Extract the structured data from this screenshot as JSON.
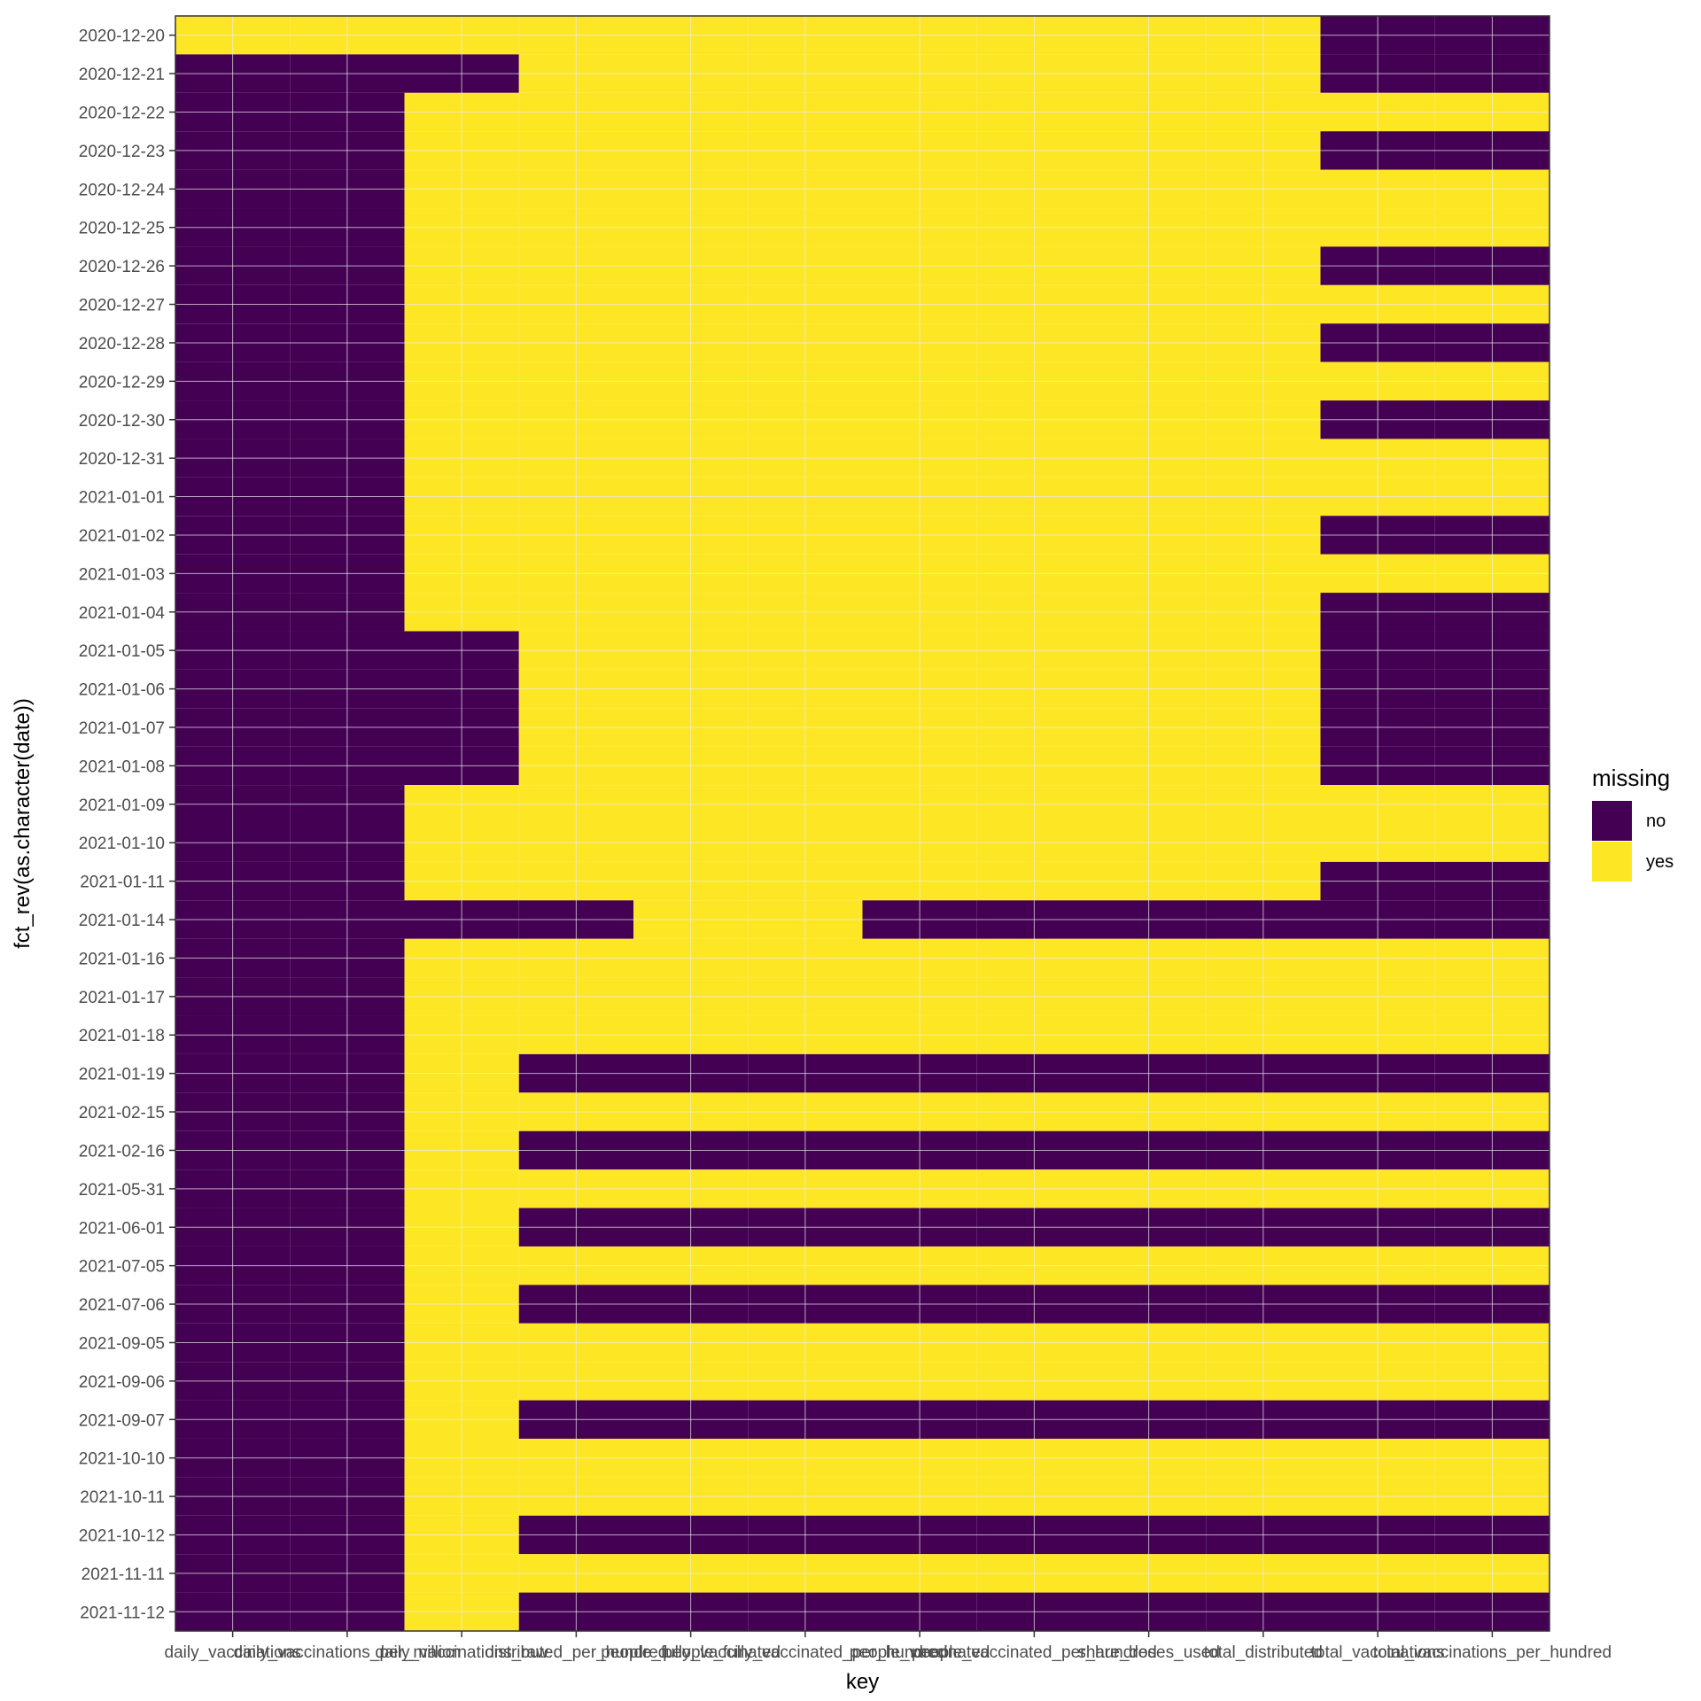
{
  "chart_data": {
    "type": "heatmap",
    "xlabel": "key",
    "ylabel": "fct_rev(as.character(date))",
    "x_categories": [
      "daily_vaccinations",
      "daily_vaccinations_per_million",
      "daily_vaccinations_raw",
      "distributed_per_hundred",
      "people_fully_vaccinated",
      "people_fully_vaccinated_per_hundred",
      "people_vaccinated",
      "people_vaccinated_per_hundred",
      "share_doses_used",
      "total_distributed",
      "total_vaccinations",
      "total_vaccinations_per_hundred"
    ],
    "x_tick_labels": [
      "daily_vaccinations",
      "daily_vaccinations_per_million",
      "daily_vaccinations_raw",
      "distributed_per_hundred",
      "people_fully_vaccinated",
      "people_fully_vaccinated_per_hundred",
      "people_vaccinated",
      "people_vaccinated_per_hundred",
      "share_doses_used",
      "total_distributed",
      "total_vaccinations",
      "total_vaccinations_per_hundred"
    ],
    "y_categories": [
      "2020-12-20",
      "2020-12-21",
      "2020-12-22",
      "2020-12-23",
      "2020-12-24",
      "2020-12-25",
      "2020-12-26",
      "2020-12-27",
      "2020-12-28",
      "2020-12-29",
      "2020-12-30",
      "2020-12-31",
      "2021-01-01",
      "2021-01-02",
      "2021-01-03",
      "2021-01-04",
      "2021-01-05",
      "2021-01-06",
      "2021-01-07",
      "2021-01-08",
      "2021-01-09",
      "2021-01-10",
      "2021-01-11",
      "2021-01-14",
      "2021-01-16",
      "2021-01-17",
      "2021-01-18",
      "2021-01-19",
      "2021-02-15",
      "2021-02-16",
      "2021-05-31",
      "2021-06-01",
      "2021-07-05",
      "2021-07-06",
      "2021-09-05",
      "2021-09-06",
      "2021-09-07",
      "2021-10-10",
      "2021-10-11",
      "2021-10-12",
      "2021-11-11",
      "2021-11-12"
    ],
    "values": [
      [
        1,
        1,
        1,
        1,
        1,
        1,
        1,
        1,
        1,
        1,
        0,
        0
      ],
      [
        0,
        0,
        0,
        1,
        1,
        1,
        1,
        1,
        1,
        1,
        0,
        0
      ],
      [
        0,
        0,
        1,
        1,
        1,
        1,
        1,
        1,
        1,
        1,
        1,
        1
      ],
      [
        0,
        0,
        1,
        1,
        1,
        1,
        1,
        1,
        1,
        1,
        0,
        0
      ],
      [
        0,
        0,
        1,
        1,
        1,
        1,
        1,
        1,
        1,
        1,
        1,
        1
      ],
      [
        0,
        0,
        1,
        1,
        1,
        1,
        1,
        1,
        1,
        1,
        1,
        1
      ],
      [
        0,
        0,
        1,
        1,
        1,
        1,
        1,
        1,
        1,
        1,
        0,
        0
      ],
      [
        0,
        0,
        1,
        1,
        1,
        1,
        1,
        1,
        1,
        1,
        1,
        1
      ],
      [
        0,
        0,
        1,
        1,
        1,
        1,
        1,
        1,
        1,
        1,
        0,
        0
      ],
      [
        0,
        0,
        1,
        1,
        1,
        1,
        1,
        1,
        1,
        1,
        1,
        1
      ],
      [
        0,
        0,
        1,
        1,
        1,
        1,
        1,
        1,
        1,
        1,
        0,
        0
      ],
      [
        0,
        0,
        1,
        1,
        1,
        1,
        1,
        1,
        1,
        1,
        1,
        1
      ],
      [
        0,
        0,
        1,
        1,
        1,
        1,
        1,
        1,
        1,
        1,
        1,
        1
      ],
      [
        0,
        0,
        1,
        1,
        1,
        1,
        1,
        1,
        1,
        1,
        0,
        0
      ],
      [
        0,
        0,
        1,
        1,
        1,
        1,
        1,
        1,
        1,
        1,
        1,
        1
      ],
      [
        0,
        0,
        1,
        1,
        1,
        1,
        1,
        1,
        1,
        1,
        0,
        0
      ],
      [
        0,
        0,
        0,
        1,
        1,
        1,
        1,
        1,
        1,
        1,
        0,
        0
      ],
      [
        0,
        0,
        0,
        1,
        1,
        1,
        1,
        1,
        1,
        1,
        0,
        0
      ],
      [
        0,
        0,
        0,
        1,
        1,
        1,
        1,
        1,
        1,
        1,
        0,
        0
      ],
      [
        0,
        0,
        0,
        1,
        1,
        1,
        1,
        1,
        1,
        1,
        0,
        0
      ],
      [
        0,
        0,
        1,
        1,
        1,
        1,
        1,
        1,
        1,
        1,
        1,
        1
      ],
      [
        0,
        0,
        1,
        1,
        1,
        1,
        1,
        1,
        1,
        1,
        1,
        1
      ],
      [
        0,
        0,
        1,
        1,
        1,
        1,
        1,
        1,
        1,
        1,
        0,
        0
      ],
      [
        0,
        0,
        0,
        0,
        1,
        1,
        0,
        0,
        0,
        0,
        0,
        0
      ],
      [
        0,
        0,
        1,
        1,
        1,
        1,
        1,
        1,
        1,
        1,
        1,
        1
      ],
      [
        0,
        0,
        1,
        1,
        1,
        1,
        1,
        1,
        1,
        1,
        1,
        1
      ],
      [
        0,
        0,
        1,
        1,
        1,
        1,
        1,
        1,
        1,
        1,
        1,
        1
      ],
      [
        0,
        0,
        1,
        0,
        0,
        0,
        0,
        0,
        0,
        0,
        0,
        0
      ],
      [
        0,
        0,
        1,
        1,
        1,
        1,
        1,
        1,
        1,
        1,
        1,
        1
      ],
      [
        0,
        0,
        1,
        0,
        0,
        0,
        0,
        0,
        0,
        0,
        0,
        0
      ],
      [
        0,
        0,
        1,
        1,
        1,
        1,
        1,
        1,
        1,
        1,
        1,
        1
      ],
      [
        0,
        0,
        1,
        0,
        0,
        0,
        0,
        0,
        0,
        0,
        0,
        0
      ],
      [
        0,
        0,
        1,
        1,
        1,
        1,
        1,
        1,
        1,
        1,
        1,
        1
      ],
      [
        0,
        0,
        1,
        0,
        0,
        0,
        0,
        0,
        0,
        0,
        0,
        0
      ],
      [
        0,
        0,
        1,
        1,
        1,
        1,
        1,
        1,
        1,
        1,
        1,
        1
      ],
      [
        0,
        0,
        1,
        1,
        1,
        1,
        1,
        1,
        1,
        1,
        1,
        1
      ],
      [
        0,
        0,
        1,
        0,
        0,
        0,
        0,
        0,
        0,
        0,
        0,
        0
      ],
      [
        0,
        0,
        1,
        1,
        1,
        1,
        1,
        1,
        1,
        1,
        1,
        1
      ],
      [
        0,
        0,
        1,
        1,
        1,
        1,
        1,
        1,
        1,
        1,
        1,
        1
      ],
      [
        0,
        0,
        1,
        0,
        0,
        0,
        0,
        0,
        0,
        0,
        0,
        0
      ],
      [
        0,
        0,
        1,
        1,
        1,
        1,
        1,
        1,
        1,
        1,
        1,
        1
      ],
      [
        0,
        0,
        1,
        0,
        0,
        0,
        0,
        0,
        0,
        0,
        0,
        0
      ]
    ],
    "value_legend": {
      "0": "no",
      "1": "yes"
    },
    "legend": {
      "title": "missing",
      "entries": [
        {
          "label": "no",
          "color": "#440154"
        },
        {
          "label": "yes",
          "color": "#FDE725"
        }
      ],
      "position": "right"
    },
    "colors": {
      "no": "#440154",
      "yes": "#FDE725",
      "grid": "#ebebeb",
      "panel_border": "#333333"
    },
    "grid": true
  }
}
